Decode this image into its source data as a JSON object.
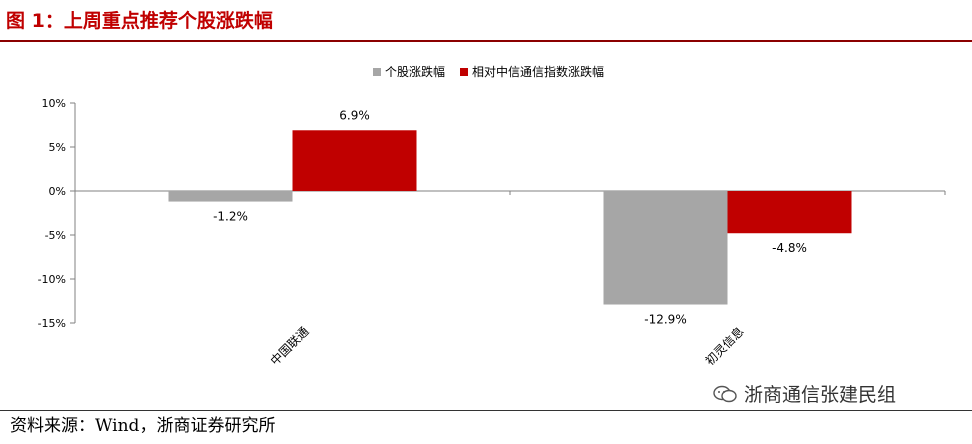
{
  "figure": {
    "title": "图 1：上周重点推荐个股涨跌幅",
    "source": "资料来源：Wind，浙商证券研究所",
    "watermark": "浙商通信张建民组"
  },
  "colors": {
    "title": "#c00000",
    "series_stock": "#a6a6a6",
    "series_index": "#c00000"
  },
  "chart_data": {
    "type": "bar",
    "categories": [
      "中国联通",
      "初灵信息"
    ],
    "series": [
      {
        "name": "个股涨跌幅",
        "values": [
          -1.2,
          -12.9
        ],
        "labels": [
          "-1.2%",
          "-12.9%"
        ],
        "color": "#a6a6a6"
      },
      {
        "name": "相对中信通信指数涨跌幅",
        "values": [
          6.9,
          -4.8
        ],
        "labels": [
          "6.9%",
          "-4.8%"
        ],
        "color": "#c00000"
      }
    ],
    "ylim": [
      -15,
      10
    ],
    "yticks": [
      10,
      5,
      0,
      -5,
      -10,
      -15
    ],
    "ytick_labels": [
      "10%",
      "5%",
      "0%",
      "-5%",
      "-10%",
      "-15%"
    ],
    "unit": "%",
    "legend_position": "top-center",
    "grid": false
  }
}
